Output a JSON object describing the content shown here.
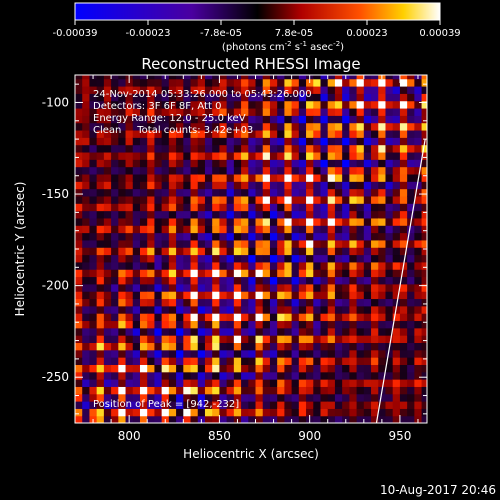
{
  "colorbar": {
    "tick_labels": [
      "-0.00039",
      "-0.00023",
      "-7.8e-05",
      "7.8e-05",
      "0.00023",
      "0.00039"
    ],
    "units_text": "(photons cm",
    "units_exp1": "-2",
    "units_mid": " s",
    "units_exp2": "-1",
    "units_end": " asec",
    "units_exp3": "-2",
    "units_close": ")",
    "range": [
      -0.00039,
      0.00039
    ],
    "colors": [
      "#0000ff",
      "#000000",
      "#ff0000",
      "#ffff00",
      "#ffffff"
    ]
  },
  "chart_data": {
    "type": "heatmap",
    "title": "Reconstructed RHESSI Image",
    "xlabel": "Heliocentric X (arcsec)",
    "ylabel": "Heliocentric Y (arcsec)",
    "xlim": [
      770,
      965
    ],
    "ylim": [
      -275,
      -85
    ],
    "x_ticks": [
      800,
      850,
      900,
      950
    ],
    "y_ticks": [
      -100,
      -150,
      -200,
      -250
    ],
    "annotations": [
      "24-Nov-2014 05:33:26.000 to 05:43:26.000",
      "Detectors: 3F 6F 8F, Att 0",
      "Energy Range: 12.0 - 25.0 keV",
      "Clean     Total counts: 3.42e+03"
    ],
    "peak_label": "Position of Peak = [942,-232]",
    "peak": [
      942,
      -232
    ],
    "limb_line": [
      [
        937,
        -275
      ],
      [
        964,
        -120
      ]
    ],
    "pixel_size_arcsec": 4
  },
  "footer": {
    "date": "10-Aug-2017 20:46"
  }
}
